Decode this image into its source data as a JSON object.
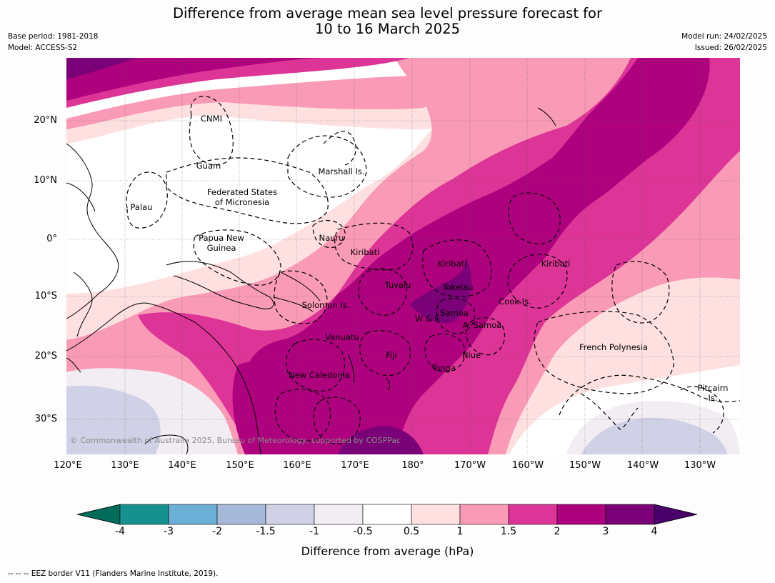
{
  "title_line1": "Difference from average mean sea level pressure forecast for",
  "title_line2": "10 to 16 March 2025",
  "meta_left": [
    "Base period: 1981-2018",
    "Model: ACCESS-S2"
  ],
  "meta_right": [
    "Model run: 24/02/2025",
    "Issued: 26/02/2025"
  ],
  "lat_labels": [
    "20°N",
    "10°N",
    "0°",
    "10°S",
    "20°S",
    "30°S"
  ],
  "lon_labels": [
    "120°E",
    "130°E",
    "140°E",
    "150°E",
    "160°E",
    "170°E",
    "180°",
    "170°W",
    "160°W",
    "150°W",
    "140°W",
    "130°W"
  ],
  "places": {
    "cnmi": "CNMI",
    "guam": "Guam",
    "marshall": "Marshall Is.",
    "fsm_1": "Federated States",
    "fsm_2": "of Micronesia",
    "palau": "Palau",
    "png_1": "Papua New",
    "png_2": "Guinea",
    "nauru": "Nauru",
    "kiribati_w": "Kiribati",
    "kiribati_c": "Kiribati",
    "kiribati_e": "Kiribati",
    "tuvalu": "Tuvalu",
    "tokelau": "Tokelau",
    "cook": "Cook Is.",
    "solomon": "Solomon Is.",
    "wf": "W & F",
    "samoa": "Samoa",
    "asamoa": "A. Samoa",
    "vanuatu": "Vanuatu",
    "fiji": "Fiji",
    "niue": "Niue",
    "tonga": "Tonga",
    "frpoly": "French Polynesia",
    "newcal": "New Caledonia",
    "pitcairn_1": "Pitcairn",
    "pitcairn_2": "Is."
  },
  "copyright": "© Commonwealth of Australia 2025, Bureau of Meteorology, supported by COSPPac",
  "colorbar": {
    "ticks": [
      "-4",
      "-3",
      "-2",
      "-1.5",
      "-1",
      "-0.5",
      "0.5",
      "1",
      "1.5",
      "2",
      "3",
      "4"
    ],
    "colors": [
      "#17918f",
      "#6baed6",
      "#a7b9d9",
      "#d0d1e6",
      "#f1edf3",
      "#ffffff",
      "#fee0e0",
      "#f99ab6",
      "#dd3497",
      "#ae017e",
      "#7a0177"
    ],
    "under_color": "#016c59",
    "over_color": "#49006a",
    "label": "Difference from average (hPa)"
  },
  "footnote": "--  --  -- EEZ border V11 (Flanders Marine Institute, 2019)."
}
